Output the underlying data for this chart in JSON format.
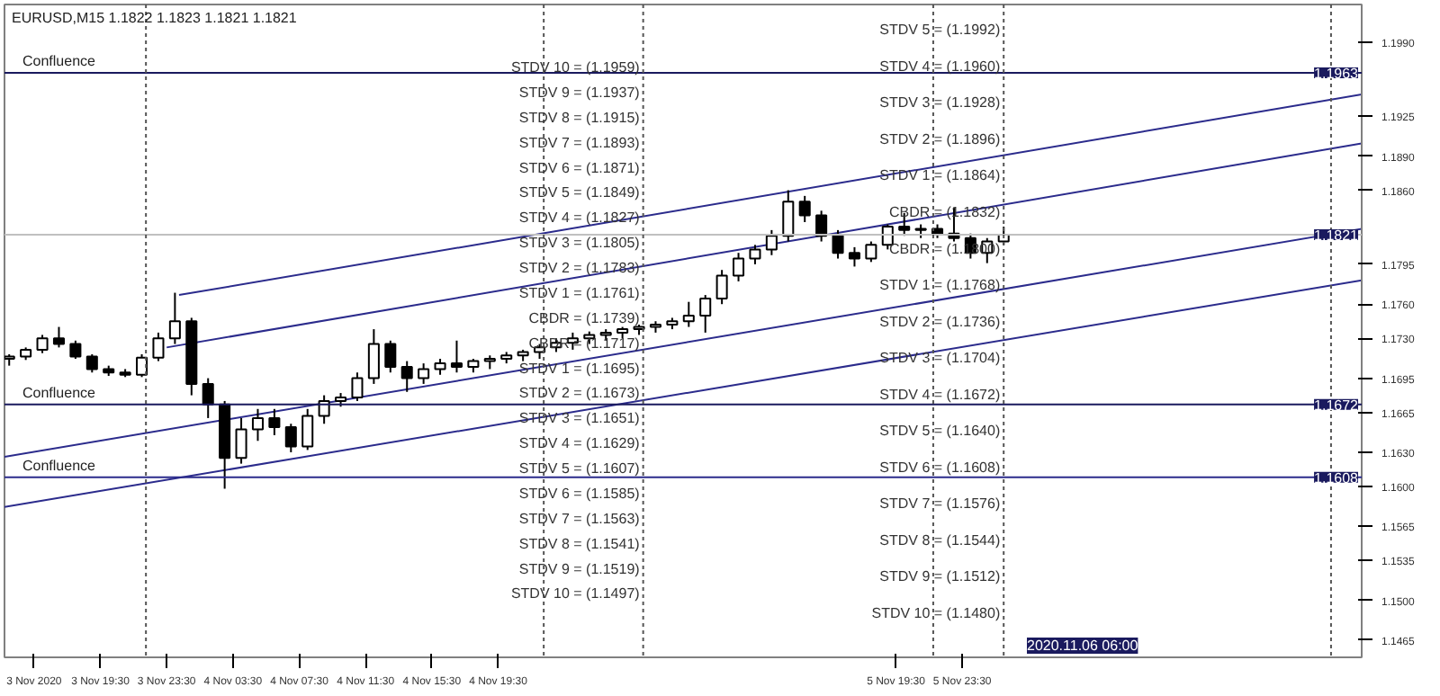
{
  "chart_data": {
    "type": "candlestick",
    "title": "EURUSD,M15  1.1822 1.1823 1.1821 1.1821",
    "color": "#000000",
    "x": [
      "2020-11-03T14:00",
      "2020-11-03T15:00",
      "2020-11-03T16:00",
      "2020-11-03T17:00",
      "2020-11-03T18:00",
      "2020-11-03T19:00",
      "2020-11-03T20:00",
      "2020-11-03T21:00",
      "2020-11-03T22:00",
      "2020-11-03T23:00",
      "2020-11-04T00:00",
      "2020-11-04T01:00",
      "2020-11-04T02:00",
      "2020-11-04T03:00",
      "2020-11-04T04:00",
      "2020-11-04T05:00",
      "2020-11-04T06:00",
      "2020-11-04T07:00",
      "2020-11-04T08:00",
      "2020-11-04T09:00",
      "2020-11-04T10:00",
      "2020-11-04T11:00",
      "2020-11-04T12:00",
      "2020-11-04T13:00",
      "2020-11-04T14:00",
      "2020-11-04T15:00",
      "2020-11-04T16:00",
      "2020-11-04T17:00",
      "2020-11-04T18:00",
      "2020-11-04T19:00",
      "2020-11-04T20:00",
      "2020-11-04T21:00",
      "2020-11-04T22:00",
      "2020-11-04T23:00",
      "2020-11-05T00:00",
      "2020-11-05T01:00",
      "2020-11-05T02:00",
      "2020-11-05T03:00",
      "2020-11-05T04:00",
      "2020-11-05T05:00",
      "2020-11-05T06:00",
      "2020-11-05T07:00",
      "2020-11-05T08:00",
      "2020-11-05T09:00",
      "2020-11-05T10:00",
      "2020-11-05T11:00",
      "2020-11-05T12:00",
      "2020-11-05T13:00",
      "2020-11-05T14:00",
      "2020-11-05T15:00",
      "2020-11-05T16:00",
      "2020-11-05T17:00",
      "2020-11-05T18:00",
      "2020-11-05T19:00",
      "2020-11-05T20:00",
      "2020-11-05T21:00",
      "2020-11-05T22:00",
      "2020-11-05T23:00",
      "2020-11-06T00:00",
      "2020-11-06T01:00",
      "2020-11-06T02:00"
    ],
    "ohlc": [
      [
        1.1712,
        1.1716,
        1.1706,
        1.1714
      ],
      [
        1.1714,
        1.1722,
        1.1711,
        1.172
      ],
      [
        1.172,
        1.1733,
        1.1717,
        1.173
      ],
      [
        1.173,
        1.174,
        1.1722,
        1.1725
      ],
      [
        1.1725,
        1.1728,
        1.1712,
        1.1714
      ],
      [
        1.1714,
        1.1716,
        1.17,
        1.1703
      ],
      [
        1.1703,
        1.1706,
        1.1697,
        1.17
      ],
      [
        1.17,
        1.1703,
        1.1696,
        1.1698
      ],
      [
        1.1698,
        1.1716,
        1.1696,
        1.1713
      ],
      [
        1.1713,
        1.1735,
        1.171,
        1.173
      ],
      [
        1.173,
        1.177,
        1.1725,
        1.1745
      ],
      [
        1.1745,
        1.1748,
        1.168,
        1.169
      ],
      [
        1.169,
        1.1695,
        1.166,
        1.1672
      ],
      [
        1.1672,
        1.1675,
        1.1598,
        1.1625
      ],
      [
        1.1625,
        1.166,
        1.162,
        1.165
      ],
      [
        1.165,
        1.1668,
        1.164,
        1.166
      ],
      [
        1.166,
        1.1668,
        1.1645,
        1.1652
      ],
      [
        1.1652,
        1.1655,
        1.163,
        1.1635
      ],
      [
        1.1635,
        1.1668,
        1.1632,
        1.1662
      ],
      [
        1.1662,
        1.168,
        1.1655,
        1.1675
      ],
      [
        1.1675,
        1.1682,
        1.167,
        1.1678
      ],
      [
        1.1678,
        1.17,
        1.1675,
        1.1695
      ],
      [
        1.1695,
        1.1738,
        1.169,
        1.1725
      ],
      [
        1.1725,
        1.1728,
        1.17,
        1.1705
      ],
      [
        1.1705,
        1.171,
        1.1683,
        1.1695
      ],
      [
        1.1695,
        1.1708,
        1.169,
        1.1703
      ],
      [
        1.1703,
        1.1712,
        1.1698,
        1.1708
      ],
      [
        1.1708,
        1.1728,
        1.17,
        1.1705
      ],
      [
        1.1705,
        1.1712,
        1.17,
        1.171
      ],
      [
        1.171,
        1.1715,
        1.1703,
        1.1712
      ],
      [
        1.1712,
        1.1718,
        1.1708,
        1.1715
      ],
      [
        1.1715,
        1.172,
        1.171,
        1.1718
      ],
      [
        1.1718,
        1.1725,
        1.1712,
        1.1722
      ],
      [
        1.1722,
        1.173,
        1.1718,
        1.1726
      ],
      [
        1.1726,
        1.1735,
        1.172,
        1.173
      ],
      [
        1.173,
        1.1736,
        1.1725,
        1.1733
      ],
      [
        1.1733,
        1.1738,
        1.1728,
        1.1735
      ],
      [
        1.1735,
        1.174,
        1.173,
        1.1738
      ],
      [
        1.1738,
        1.1742,
        1.1733,
        1.174
      ],
      [
        1.174,
        1.1745,
        1.1735,
        1.1742
      ],
      [
        1.1742,
        1.1748,
        1.1738,
        1.1745
      ],
      [
        1.1745,
        1.1762,
        1.174,
        1.175
      ],
      [
        1.175,
        1.1768,
        1.1735,
        1.1765
      ],
      [
        1.1765,
        1.179,
        1.176,
        1.1785
      ],
      [
        1.1785,
        1.1805,
        1.178,
        1.18
      ],
      [
        1.18,
        1.1812,
        1.1795,
        1.1808
      ],
      [
        1.1808,
        1.1825,
        1.1803,
        1.182
      ],
      [
        1.182,
        1.186,
        1.1815,
        1.185
      ],
      [
        1.185,
        1.1855,
        1.1832,
        1.1838
      ],
      [
        1.1838,
        1.1842,
        1.1815,
        1.182
      ],
      [
        1.182,
        1.1825,
        1.18,
        1.1805
      ],
      [
        1.1805,
        1.181,
        1.1793,
        1.18
      ],
      [
        1.18,
        1.1815,
        1.1797,
        1.1812
      ],
      [
        1.1812,
        1.183,
        1.1808,
        1.1828
      ],
      [
        1.1828,
        1.184,
        1.182,
        1.1825
      ],
      [
        1.1825,
        1.183,
        1.1818,
        1.1826
      ],
      [
        1.1826,
        1.183,
        1.1818,
        1.1822
      ],
      [
        1.1822,
        1.1845,
        1.1815,
        1.1818
      ],
      [
        1.1818,
        1.1822,
        1.18,
        1.1805
      ],
      [
        1.1805,
        1.1818,
        1.1796,
        1.1815
      ],
      [
        1.1815,
        1.1828,
        1.1812,
        1.1821
      ]
    ],
    "series": [
      {
        "type": "line",
        "color": "#2b2b8c",
        "x": [
          "2020-11-04T00:15",
          "2020-11-06T23:36"
        ],
        "values": [
          1.1768,
          1.1944
        ]
      },
      {
        "type": "line",
        "color": "#2b2b8c",
        "x": [
          "2020-11-03T23:30",
          "2020-11-06T23:36"
        ],
        "values": [
          1.1722,
          1.1901
        ]
      },
      {
        "type": "line",
        "color": "#2b2b8c",
        "x": [
          "2020-11-03T13:43",
          "2020-11-06T23:36"
        ],
        "values": [
          1.1626,
          1.1826
        ]
      },
      {
        "type": "line",
        "color": "#2b2b8c",
        "x": [
          "2020-11-03T13:43",
          "2020-11-06T23:36"
        ],
        "values": [
          1.1582,
          1.1781
        ]
      }
    ],
    "xlim": [
      "2020-11-03T13:43",
      "2020-11-06T23:36"
    ],
    "xticks": [
      {
        "value": "2020-11-03T15:30",
        "label": "3 Nov 2020"
      },
      {
        "value": "2020-11-03T19:30",
        "label": "3 Nov 19:30"
      },
      {
        "value": "2020-11-03T23:30",
        "label": "3 Nov 23:30"
      },
      {
        "value": "2020-11-04T03:30",
        "label": "4 Nov 03:30"
      },
      {
        "value": "2020-11-04T07:30",
        "label": "4 Nov 07:30"
      },
      {
        "value": "2020-11-04T11:30",
        "label": "4 Nov 11:30"
      },
      {
        "value": "2020-11-04T15:30",
        "label": "4 Nov 15:30"
      },
      {
        "value": "2020-11-04T19:30",
        "label": "4 Nov 19:30"
      },
      {
        "value": "2020-11-05T19:30",
        "label": "5 Nov 19:30"
      },
      {
        "value": "2020-11-05T23:30",
        "label": "5 Nov 23:30"
      }
    ],
    "ylim": [
      1.145,
      1.2023
    ],
    "yticks": [
      {
        "value": 1.199,
        "label": "1.1990"
      },
      {
        "value": 1.1925,
        "label": "1.1925"
      },
      {
        "value": 1.189,
        "label": "1.1890"
      },
      {
        "value": 1.186,
        "label": "1.1860"
      },
      {
        "value": 1.1795,
        "label": "1.1795"
      },
      {
        "value": 1.176,
        "label": "1.1760"
      },
      {
        "value": 1.173,
        "label": "1.1730"
      },
      {
        "value": 1.1695,
        "label": "1.1695"
      },
      {
        "value": 1.1665,
        "label": "1.1665"
      },
      {
        "value": 1.163,
        "label": "1.1630"
      },
      {
        "value": 1.16,
        "label": "1.1600"
      },
      {
        "value": 1.1565,
        "label": "1.1565"
      },
      {
        "value": 1.1535,
        "label": "1.1535"
      },
      {
        "value": 1.15,
        "label": "1.1500"
      },
      {
        "value": 1.1465,
        "label": "1.1465"
      }
    ],
    "ref_lines": [
      {
        "axis": "y",
        "value": 1.1963,
        "label": "Confluence",
        "color": "#1a1a5e",
        "line_style": "solid"
      },
      {
        "axis": "y",
        "value": 1.1672,
        "label": "Confluence",
        "color": "#1a1a5e",
        "line_style": "solid"
      },
      {
        "axis": "y",
        "value": 1.1608,
        "label": "Confluence",
        "color": "#2b2b8c",
        "line_style": "solid"
      },
      {
        "axis": "y",
        "value": 1.1821,
        "color": "#c0c0c0",
        "line_style": "solid"
      },
      {
        "axis": "x",
        "value": "2020-11-03T22:15",
        "color": "#555555",
        "line_style": "dotted"
      },
      {
        "axis": "x",
        "value": "2020-11-04T22:15",
        "color": "#555555",
        "line_style": "dotted"
      },
      {
        "axis": "x",
        "value": "2020-11-05T04:15",
        "color": "#555555",
        "line_style": "dotted"
      },
      {
        "axis": "x",
        "value": "2020-11-05T21:45",
        "color": "#555555",
        "line_style": "dotted"
      },
      {
        "axis": "x",
        "value": "2020-11-06T02:00",
        "color": "#555555",
        "line_style": "dotted"
      },
      {
        "axis": "x",
        "value": "2020-11-06T21:45",
        "color": "#555555",
        "line_style": "dotted"
      }
    ],
    "annotations": [
      {
        "text": "STDV 10 = (1.1959)",
        "x": "2020-11-05T04:15",
        "y": 1.1959
      },
      {
        "text": "STDV 9 = (1.1937)",
        "x": "2020-11-05T04:15",
        "y": 1.1937
      },
      {
        "text": "STDV 8 = (1.1915)",
        "x": "2020-11-05T04:15",
        "y": 1.1915
      },
      {
        "text": "STDV 7 = (1.1893)",
        "x": "2020-11-05T04:15",
        "y": 1.1893
      },
      {
        "text": "STDV 6 = (1.1871)",
        "x": "2020-11-05T04:15",
        "y": 1.1871
      },
      {
        "text": "STDV 5 = (1.1849)",
        "x": "2020-11-05T04:15",
        "y": 1.1849
      },
      {
        "text": "STDV 4 = (1.1827)",
        "x": "2020-11-05T04:15",
        "y": 1.1827
      },
      {
        "text": "STDV 3 = (1.1805)",
        "x": "2020-11-05T04:15",
        "y": 1.1805
      },
      {
        "text": "STDV 2 = (1.1783)",
        "x": "2020-11-05T04:15",
        "y": 1.1783
      },
      {
        "text": "STDV 1 = (1.1761)",
        "x": "2020-11-05T04:15",
        "y": 1.1761
      },
      {
        "text": "CBDR = (1.1739)",
        "x": "2020-11-05T04:15",
        "y": 1.1739
      },
      {
        "text": "CBDR = (1.1717)",
        "x": "2020-11-05T04:15",
        "y": 1.1717
      },
      {
        "text": "STDV 1 = (1.1695)",
        "x": "2020-11-05T04:15",
        "y": 1.1695
      },
      {
        "text": "STDV 2 = (1.1673)",
        "x": "2020-11-05T04:15",
        "y": 1.1673
      },
      {
        "text": "STDV 3 = (1.1651)",
        "x": "2020-11-05T04:15",
        "y": 1.1651
      },
      {
        "text": "STDV 4 = (1.1629)",
        "x": "2020-11-05T04:15",
        "y": 1.1629
      },
      {
        "text": "STDV 5 = (1.1607)",
        "x": "2020-11-05T04:15",
        "y": 1.1607
      },
      {
        "text": "STDV 6 = (1.1585)",
        "x": "2020-11-05T04:15",
        "y": 1.1585
      },
      {
        "text": "STDV 7 = (1.1563)",
        "x": "2020-11-05T04:15",
        "y": 1.1563
      },
      {
        "text": "STDV 8 = (1.1541)",
        "x": "2020-11-05T04:15",
        "y": 1.1541
      },
      {
        "text": "STDV 9 = (1.1519)",
        "x": "2020-11-05T04:15",
        "y": 1.1519
      },
      {
        "text": "STDV 10 = (1.1497)",
        "x": "2020-11-05T04:15",
        "y": 1.1497
      },
      {
        "text": "STDV 5 = (1.1992)",
        "x": "2020-11-06T02:00",
        "y": 1.1992
      },
      {
        "text": "STDV 4 = (1.1960)",
        "x": "2020-11-06T02:00",
        "y": 1.196
      },
      {
        "text": "STDV 3 = (1.1928)",
        "x": "2020-11-06T02:00",
        "y": 1.1928
      },
      {
        "text": "STDV 2 = (1.1896)",
        "x": "2020-11-06T02:00",
        "y": 1.1896
      },
      {
        "text": "STDV 1 = (1.1864)",
        "x": "2020-11-06T02:00",
        "y": 1.1864
      },
      {
        "text": "CBDR = (1.1832)",
        "x": "2020-11-06T02:00",
        "y": 1.1832
      },
      {
        "text": "CBDR = (1.1800)",
        "x": "2020-11-06T02:00",
        "y": 1.18
      },
      {
        "text": "STDV 1 = (1.1768)",
        "x": "2020-11-06T02:00",
        "y": 1.1768
      },
      {
        "text": "STDV 2 = (1.1736)",
        "x": "2020-11-06T02:00",
        "y": 1.1736
      },
      {
        "text": "STDV 3 = (1.1704)",
        "x": "2020-11-06T02:00",
        "y": 1.1704
      },
      {
        "text": "STDV 4 = (1.1672)",
        "x": "2020-11-06T02:00",
        "y": 1.1672
      },
      {
        "text": "STDV 5 = (1.1640)",
        "x": "2020-11-06T02:00",
        "y": 1.164
      },
      {
        "text": "STDV 6 = (1.1608)",
        "x": "2020-11-06T02:00",
        "y": 1.1608
      },
      {
        "text": "STDV 7 = (1.1576)",
        "x": "2020-11-06T02:00",
        "y": 1.1576
      },
      {
        "text": "STDV 8 = (1.1544)",
        "x": "2020-11-06T02:00",
        "y": 1.1544
      },
      {
        "text": "STDV 9 = (1.1512)",
        "x": "2020-11-06T02:00",
        "y": 1.1512
      },
      {
        "text": "STDV 10 = (1.1480)",
        "x": "2020-11-06T02:00",
        "y": 1.148
      },
      {
        "text": "1.1963",
        "y": 1.1963
      },
      {
        "text": "1.1821",
        "y": 1.1821
      },
      {
        "text": "1.1672",
        "y": 1.1672
      },
      {
        "text": "1.1608",
        "y": 1.1608
      },
      "2020.11.06 06:00"
    ]
  }
}
